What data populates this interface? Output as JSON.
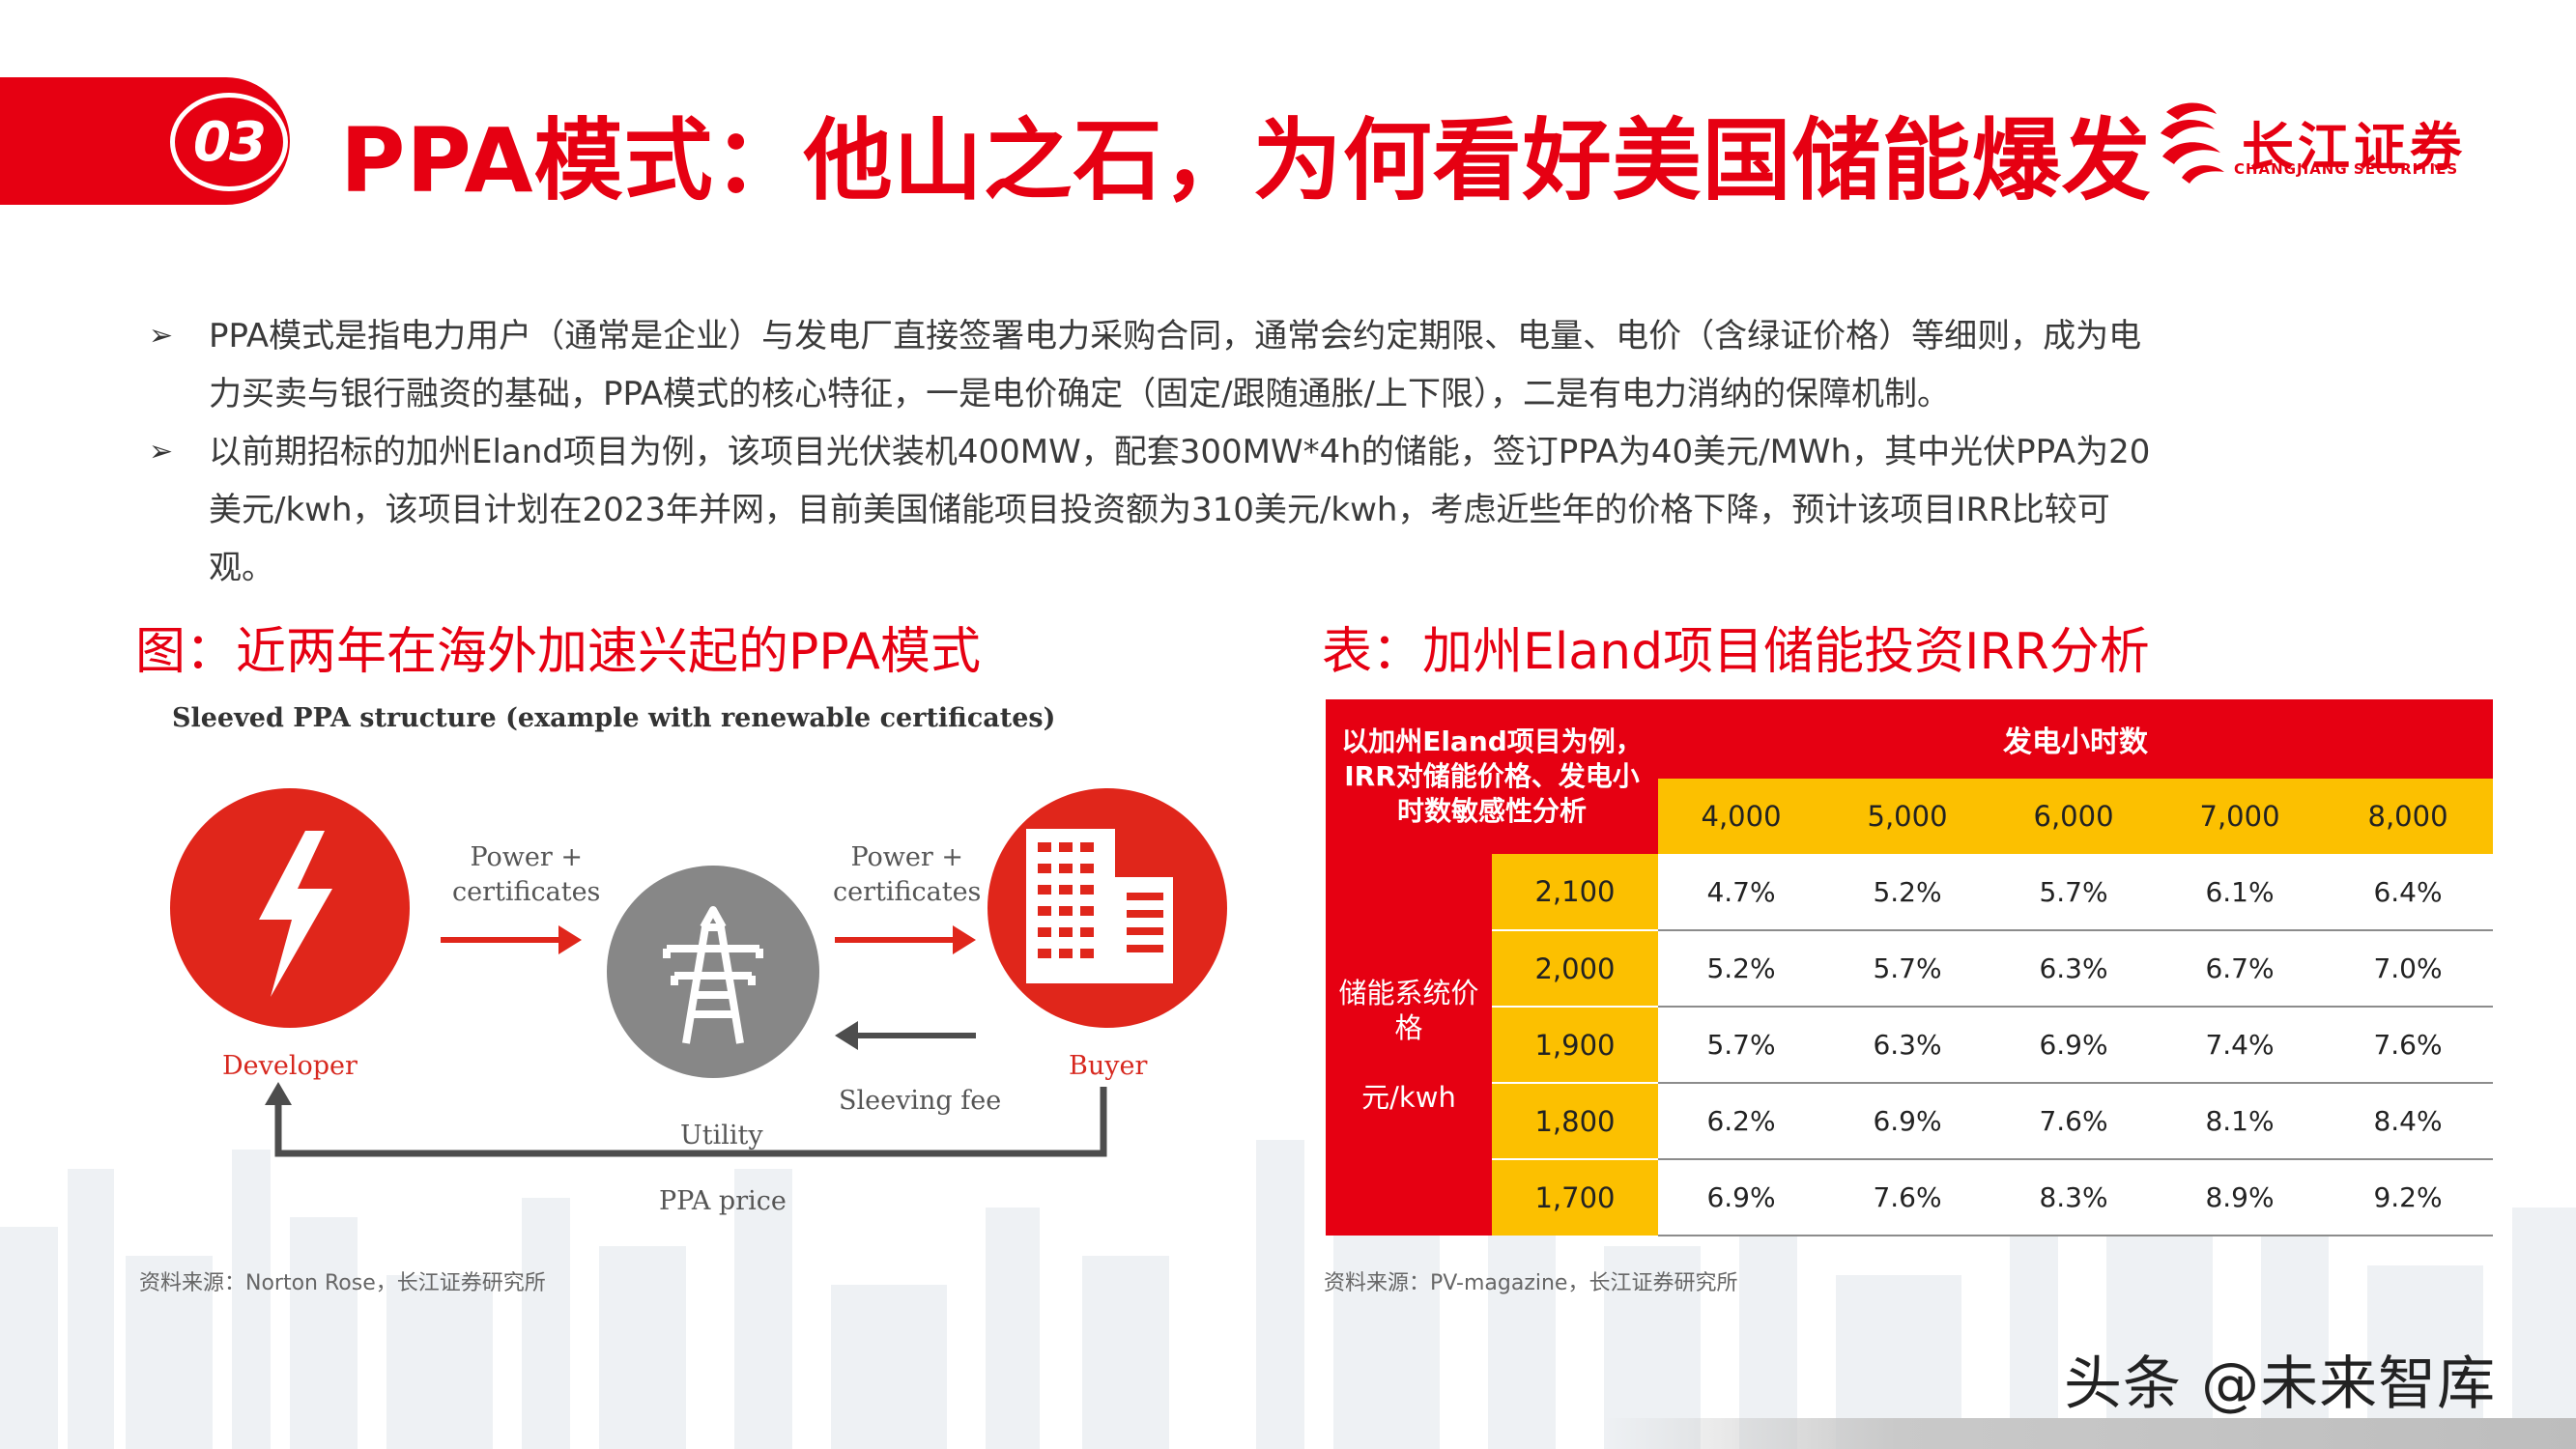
{
  "header": {
    "section_number": "03",
    "title": "PPA模式：他山之石，为何看好美国储能爆发"
  },
  "logo": {
    "name_cn": "长江证券",
    "name_en": "CHANGJIANG SECURITIES"
  },
  "bullets": [
    "PPA模式是指电力用户（通常是企业）与发电厂直接签署电力采购合同，通常会约定期限、电量、电价（含绿证价格）等细则，成为电力买卖与银行融资的基础，PPA模式的核心特征，一是电价确定（固定/跟随通胀/上下限），二是有电力消纳的保障机制。",
    "以前期招标的加州Eland项目为例，该项目光伏装机400MW，配套300MW*4h的储能，签订PPA为40美元/MWh，其中光伏PPA为20美元/kwh，该项目计划在2023年并网，目前美国储能项目投资额为310美元/kwh，考虑近些年的价格下降，预计该项目IRR比较可观。"
  ],
  "left_section": {
    "title": "图：近两年在海外加速兴起的PPA模式",
    "source": "资料来源：Norton Rose，长江证券研究所",
    "diagram": {
      "title": "Sleeved PPA structure (example with renewable certificates)",
      "developer": "Developer",
      "buyer": "Buyer",
      "utility": "Utility",
      "arrow_label_1": "Power +\ncertificates",
      "arrow_label_2": "Power +\ncertificates",
      "sleeving_fee": "Sleeving fee",
      "ppa_price": "PPA price"
    }
  },
  "right_section": {
    "title": "表：加州Eland项目储能投资IRR分析",
    "source": "资料来源：PV-magazine，长江证券研究所",
    "table": {
      "corner": "以加州Eland项目为例，IRR对储能价格、发电小时数敏感性分析",
      "col_group_header": "发电小时数",
      "columns": [
        "4,000",
        "5,000",
        "6,000",
        "7,000",
        "8,000"
      ],
      "row_group_header": "储能系统价格\n\n元/kwh",
      "rows": [
        {
          "price": "2,100",
          "values": [
            "4.7%",
            "5.2%",
            "5.7%",
            "6.1%",
            "6.4%"
          ]
        },
        {
          "price": "2,000",
          "values": [
            "5.2%",
            "5.7%",
            "6.3%",
            "6.7%",
            "7.0%"
          ]
        },
        {
          "price": "1,900",
          "values": [
            "5.7%",
            "6.3%",
            "6.9%",
            "7.4%",
            "7.6%"
          ]
        },
        {
          "price": "1,800",
          "values": [
            "6.2%",
            "6.9%",
            "7.6%",
            "8.1%",
            "8.4%"
          ]
        },
        {
          "price": "1,700",
          "values": [
            "6.9%",
            "7.6%",
            "8.3%",
            "8.9%",
            "9.2%"
          ]
        }
      ]
    }
  },
  "watermark": "头条 @未来智库",
  "colors": {
    "brand_red": "#e60012",
    "table_yellow": "#fcc000",
    "icon_grey": "#878787"
  }
}
